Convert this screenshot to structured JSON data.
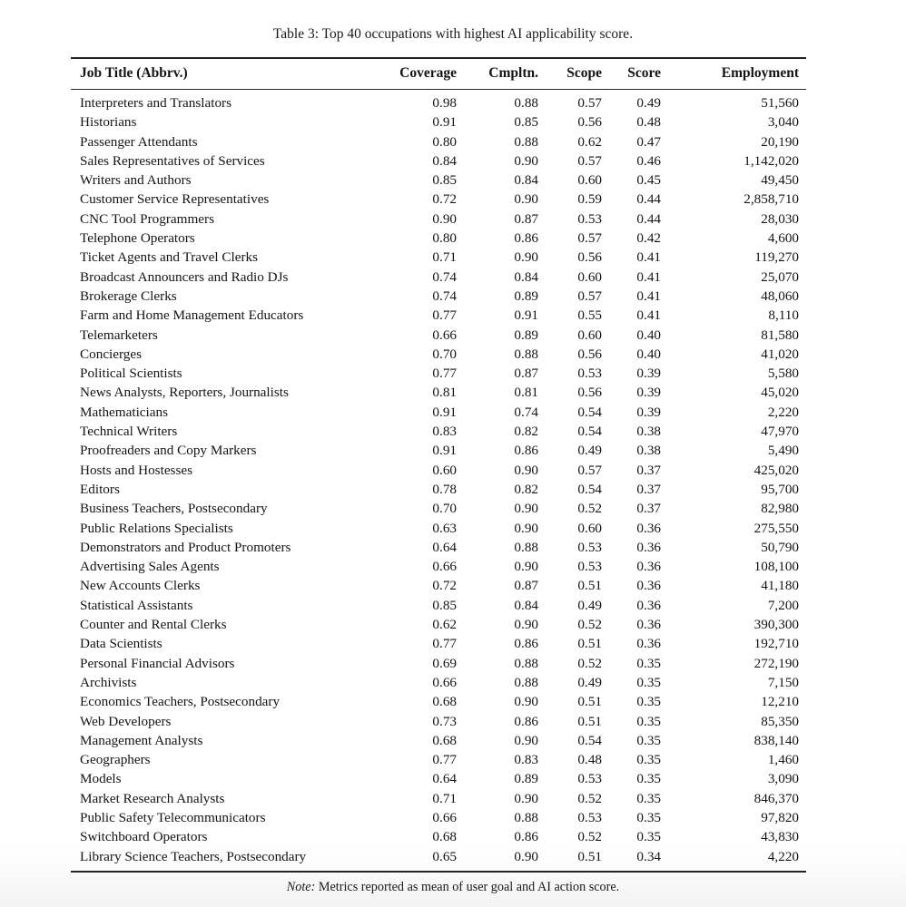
{
  "page": {
    "caption": "Table 3: Top 40 occupations with highest AI applicability score.",
    "note_prefix": "Note:",
    "note_text": "Metrics reported as mean of user goal and AI action score."
  },
  "table": {
    "columns": [
      "Job Title (Abbrv.)",
      "Coverage",
      "Cmpltn.",
      "Scope",
      "Score",
      "Employment"
    ],
    "rows": [
      [
        "Interpreters and Translators",
        "0.98",
        "0.88",
        "0.57",
        "0.49",
        "51,560"
      ],
      [
        "Historians",
        "0.91",
        "0.85",
        "0.56",
        "0.48",
        "3,040"
      ],
      [
        "Passenger Attendants",
        "0.80",
        "0.88",
        "0.62",
        "0.47",
        "20,190"
      ],
      [
        "Sales Representatives of Services",
        "0.84",
        "0.90",
        "0.57",
        "0.46",
        "1,142,020"
      ],
      [
        "Writers and Authors",
        "0.85",
        "0.84",
        "0.60",
        "0.45",
        "49,450"
      ],
      [
        "Customer Service Representatives",
        "0.72",
        "0.90",
        "0.59",
        "0.44",
        "2,858,710"
      ],
      [
        "CNC Tool Programmers",
        "0.90",
        "0.87",
        "0.53",
        "0.44",
        "28,030"
      ],
      [
        "Telephone Operators",
        "0.80",
        "0.86",
        "0.57",
        "0.42",
        "4,600"
      ],
      [
        "Ticket Agents and Travel Clerks",
        "0.71",
        "0.90",
        "0.56",
        "0.41",
        "119,270"
      ],
      [
        "Broadcast Announcers and Radio DJs",
        "0.74",
        "0.84",
        "0.60",
        "0.41",
        "25,070"
      ],
      [
        "Brokerage Clerks",
        "0.74",
        "0.89",
        "0.57",
        "0.41",
        "48,060"
      ],
      [
        "Farm and Home Management Educators",
        "0.77",
        "0.91",
        "0.55",
        "0.41",
        "8,110"
      ],
      [
        "Telemarketers",
        "0.66",
        "0.89",
        "0.60",
        "0.40",
        "81,580"
      ],
      [
        "Concierges",
        "0.70",
        "0.88",
        "0.56",
        "0.40",
        "41,020"
      ],
      [
        "Political Scientists",
        "0.77",
        "0.87",
        "0.53",
        "0.39",
        "5,580"
      ],
      [
        "News Analysts, Reporters, Journalists",
        "0.81",
        "0.81",
        "0.56",
        "0.39",
        "45,020"
      ],
      [
        "Mathematicians",
        "0.91",
        "0.74",
        "0.54",
        "0.39",
        "2,220"
      ],
      [
        "Technical Writers",
        "0.83",
        "0.82",
        "0.54",
        "0.38",
        "47,970"
      ],
      [
        "Proofreaders and Copy Markers",
        "0.91",
        "0.86",
        "0.49",
        "0.38",
        "5,490"
      ],
      [
        "Hosts and Hostesses",
        "0.60",
        "0.90",
        "0.57",
        "0.37",
        "425,020"
      ],
      [
        "Editors",
        "0.78",
        "0.82",
        "0.54",
        "0.37",
        "95,700"
      ],
      [
        "Business Teachers, Postsecondary",
        "0.70",
        "0.90",
        "0.52",
        "0.37",
        "82,980"
      ],
      [
        "Public Relations Specialists",
        "0.63",
        "0.90",
        "0.60",
        "0.36",
        "275,550"
      ],
      [
        "Demonstrators and Product Promoters",
        "0.64",
        "0.88",
        "0.53",
        "0.36",
        "50,790"
      ],
      [
        "Advertising Sales Agents",
        "0.66",
        "0.90",
        "0.53",
        "0.36",
        "108,100"
      ],
      [
        "New Accounts Clerks",
        "0.72",
        "0.87",
        "0.51",
        "0.36",
        "41,180"
      ],
      [
        "Statistical Assistants",
        "0.85",
        "0.84",
        "0.49",
        "0.36",
        "7,200"
      ],
      [
        "Counter and Rental Clerks",
        "0.62",
        "0.90",
        "0.52",
        "0.36",
        "390,300"
      ],
      [
        "Data Scientists",
        "0.77",
        "0.86",
        "0.51",
        "0.36",
        "192,710"
      ],
      [
        "Personal Financial Advisors",
        "0.69",
        "0.88",
        "0.52",
        "0.35",
        "272,190"
      ],
      [
        "Archivists",
        "0.66",
        "0.88",
        "0.49",
        "0.35",
        "7,150"
      ],
      [
        "Economics Teachers, Postsecondary",
        "0.68",
        "0.90",
        "0.51",
        "0.35",
        "12,210"
      ],
      [
        "Web Developers",
        "0.73",
        "0.86",
        "0.51",
        "0.35",
        "85,350"
      ],
      [
        "Management Analysts",
        "0.68",
        "0.90",
        "0.54",
        "0.35",
        "838,140"
      ],
      [
        "Geographers",
        "0.77",
        "0.83",
        "0.48",
        "0.35",
        "1,460"
      ],
      [
        "Models",
        "0.64",
        "0.89",
        "0.53",
        "0.35",
        "3,090"
      ],
      [
        "Market Research Analysts",
        "0.71",
        "0.90",
        "0.52",
        "0.35",
        "846,370"
      ],
      [
        "Public Safety Telecommunicators",
        "0.66",
        "0.88",
        "0.53",
        "0.35",
        "97,820"
      ],
      [
        "Switchboard Operators",
        "0.68",
        "0.86",
        "0.52",
        "0.35",
        "43,830"
      ],
      [
        "Library Science Teachers, Postsecondary",
        "0.65",
        "0.90",
        "0.51",
        "0.34",
        "4,220"
      ]
    ]
  }
}
